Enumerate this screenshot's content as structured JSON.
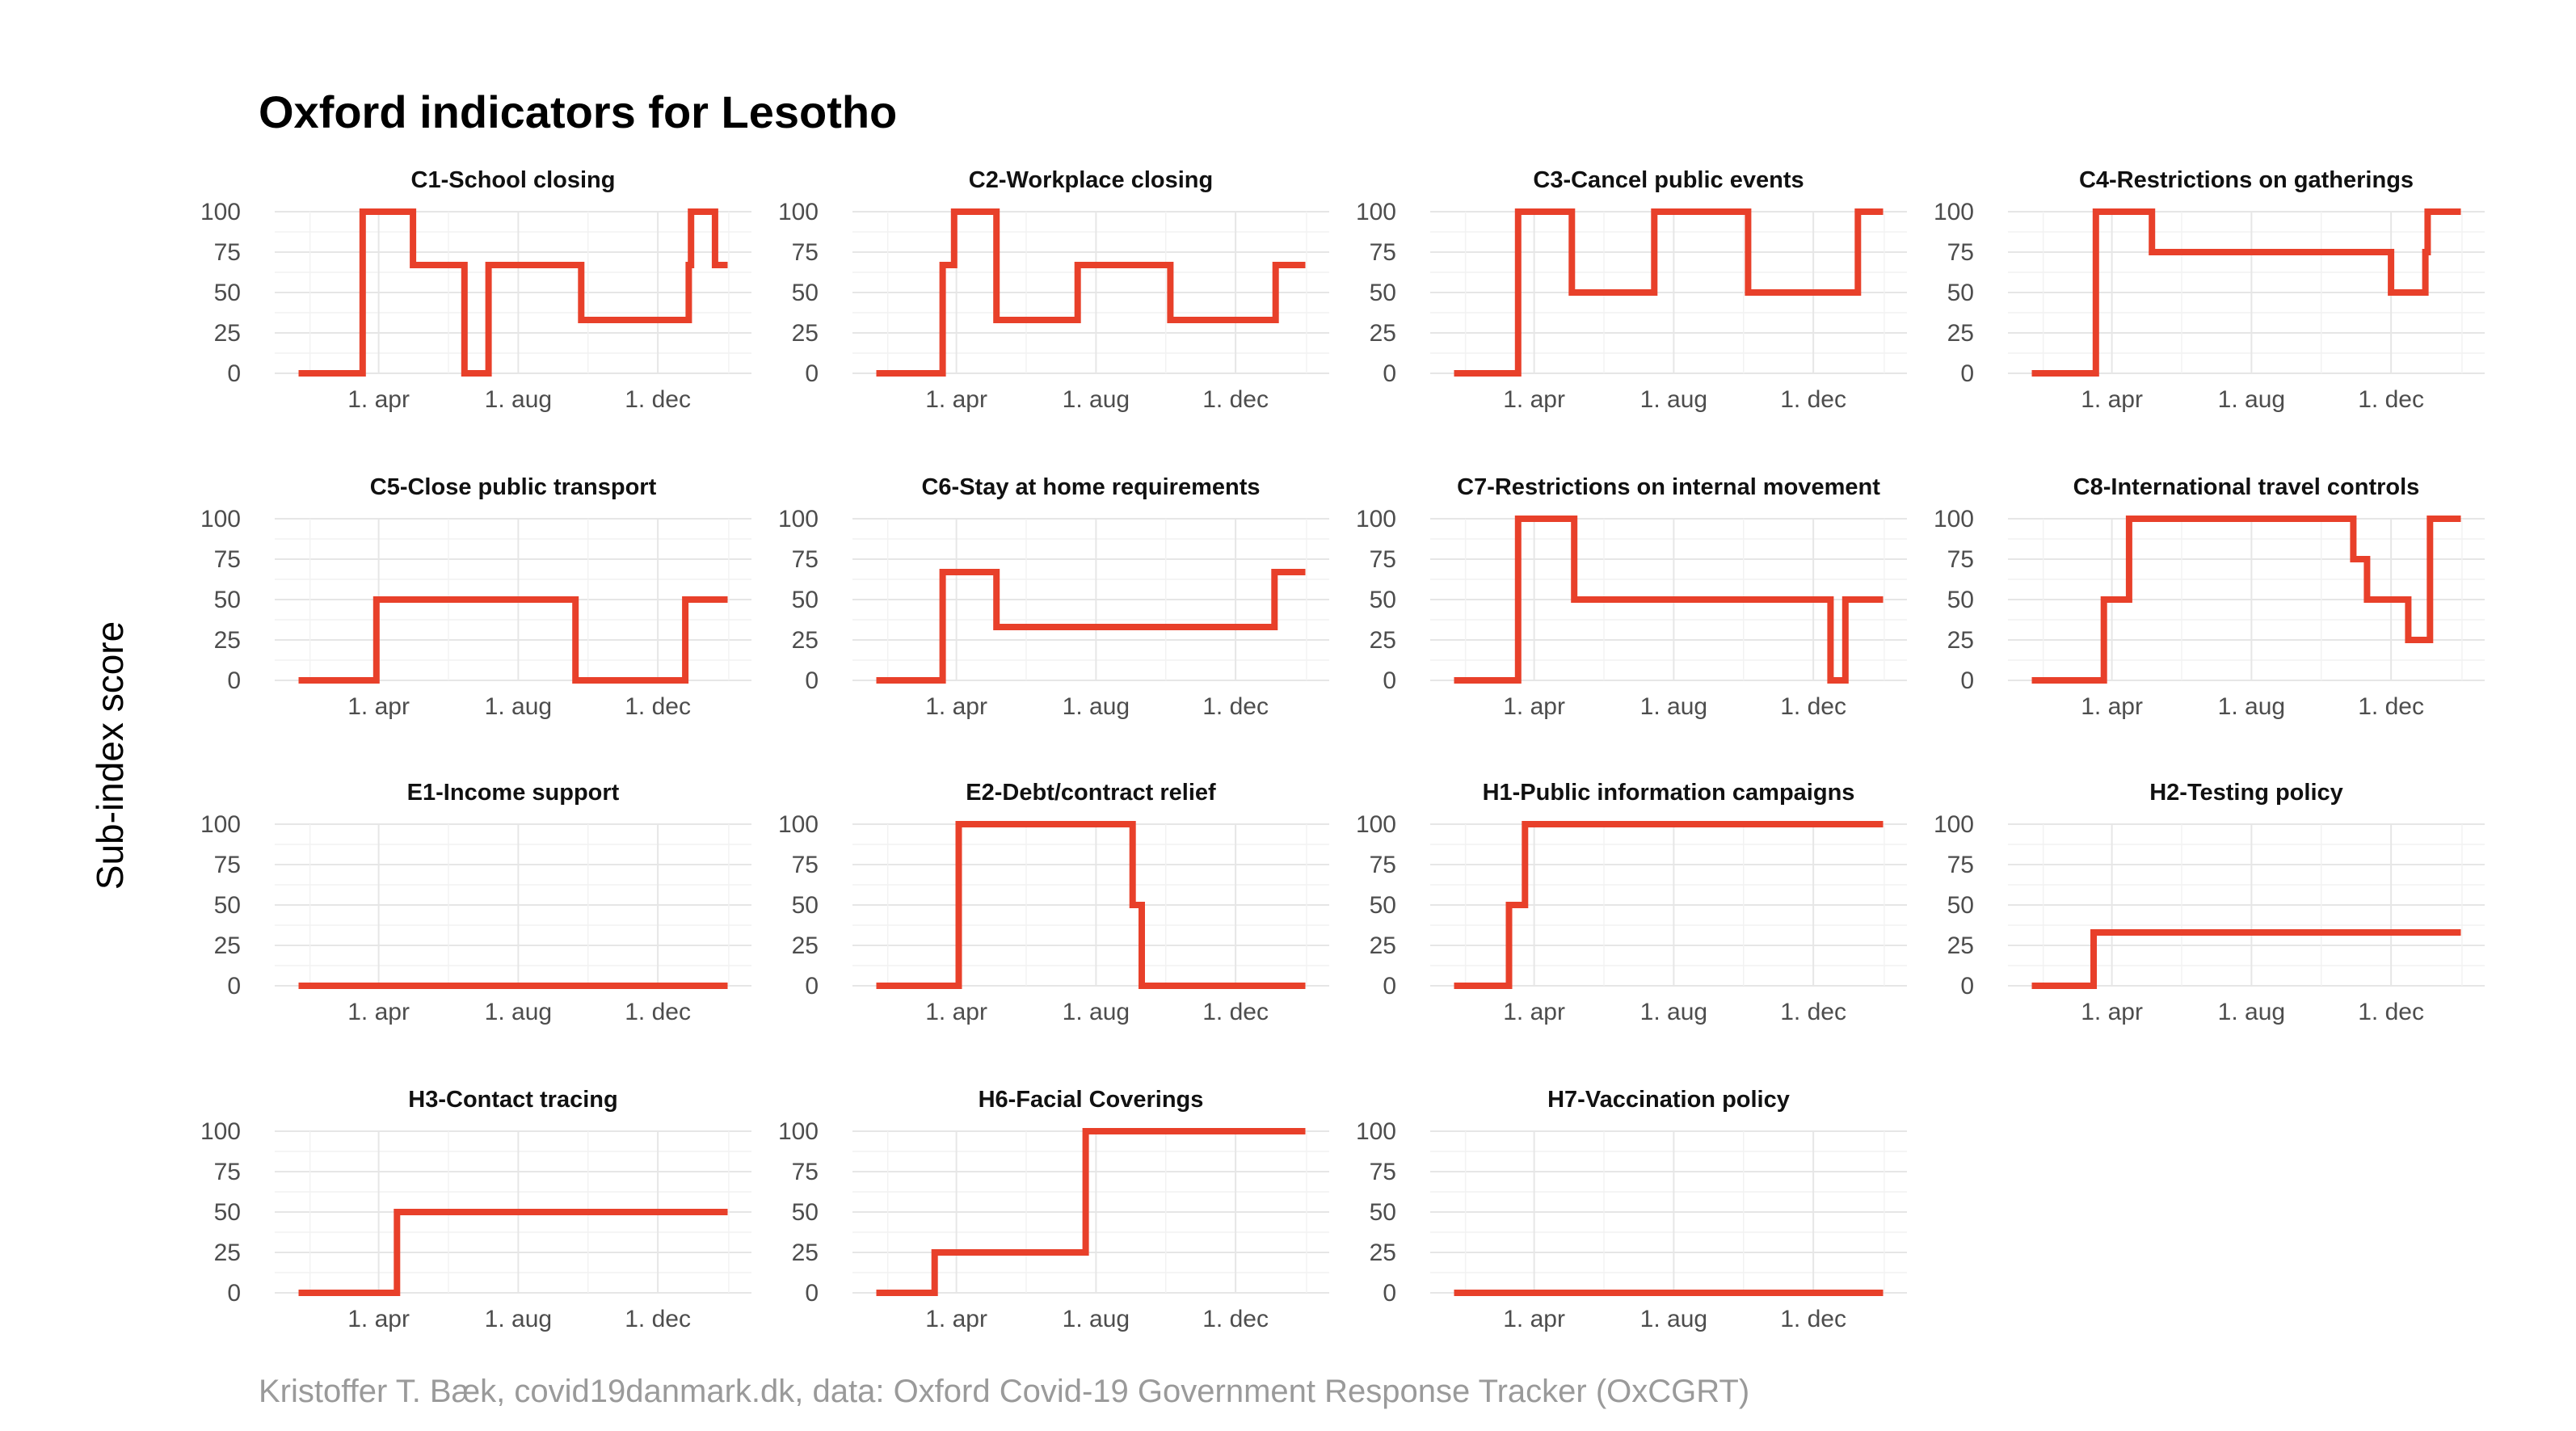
{
  "title": "Oxford indicators for Lesotho",
  "ylabel": "Sub-index score",
  "caption": "Kristoffer T. Bæk, covid19danmark.dk, data: Oxford Covid-19 Government Response Tracker (OxCGRT)",
  "colors": {
    "series": "#e8402a",
    "grid": "#e6e6e6",
    "caption": "#9a9a9a"
  },
  "chart_data": {
    "type": "line",
    "xlabel": "",
    "ylabel": "Sub-index score",
    "x_ticks": [
      "1. apr",
      "1. aug",
      "1. dec"
    ],
    "y_ticks": [
      0,
      25,
      50,
      75,
      100
    ],
    "ylim": [
      0,
      100
    ],
    "xlim": [
      "2020-01-22",
      "2021-01-31"
    ],
    "grid": true,
    "legend": "none",
    "panels": [
      {
        "name": "C1-School closing",
        "steps": [
          [
            "2020-01-22",
            0
          ],
          [
            "2020-03-18",
            100
          ],
          [
            "2020-05-01",
            67
          ],
          [
            "2020-06-15",
            0
          ],
          [
            "2020-07-06",
            67
          ],
          [
            "2020-09-25",
            33
          ],
          [
            "2020-12-28",
            67
          ],
          [
            "2020-12-30",
            100
          ],
          [
            "2021-01-20",
            67
          ],
          [
            "2021-01-31",
            67
          ]
        ]
      },
      {
        "name": "C2-Workplace closing",
        "steps": [
          [
            "2020-01-22",
            0
          ],
          [
            "2020-03-20",
            67
          ],
          [
            "2020-03-30",
            100
          ],
          [
            "2020-05-06",
            33
          ],
          [
            "2020-07-16",
            67
          ],
          [
            "2020-10-05",
            33
          ],
          [
            "2021-01-05",
            67
          ],
          [
            "2021-01-31",
            67
          ]
        ]
      },
      {
        "name": "C3-Cancel public events",
        "steps": [
          [
            "2020-01-22",
            0
          ],
          [
            "2020-03-18",
            100
          ],
          [
            "2020-05-04",
            50
          ],
          [
            "2020-07-15",
            100
          ],
          [
            "2020-10-05",
            50
          ],
          [
            "2021-01-09",
            100
          ],
          [
            "2021-01-31",
            100
          ]
        ]
      },
      {
        "name": "C4-Restrictions on gatherings",
        "steps": [
          [
            "2020-01-22",
            0
          ],
          [
            "2020-03-18",
            100
          ],
          [
            "2020-05-06",
            75
          ],
          [
            "2020-12-01",
            50
          ],
          [
            "2020-12-31",
            75
          ],
          [
            "2021-01-02",
            100
          ],
          [
            "2021-01-31",
            100
          ]
        ]
      },
      {
        "name": "C5-Close public transport",
        "steps": [
          [
            "2020-01-22",
            0
          ],
          [
            "2020-03-30",
            50
          ],
          [
            "2020-09-20",
            0
          ],
          [
            "2020-12-25",
            50
          ],
          [
            "2021-01-31",
            50
          ]
        ]
      },
      {
        "name": "C6-Stay at home requirements",
        "steps": [
          [
            "2020-01-22",
            0
          ],
          [
            "2020-03-20",
            67
          ],
          [
            "2020-05-06",
            33
          ],
          [
            "2021-01-04",
            67
          ],
          [
            "2021-01-31",
            67
          ]
        ]
      },
      {
        "name": "C7-Restrictions on internal movement",
        "steps": [
          [
            "2020-01-22",
            0
          ],
          [
            "2020-03-18",
            100
          ],
          [
            "2020-05-06",
            50
          ],
          [
            "2020-12-16",
            0
          ],
          [
            "2020-12-29",
            50
          ],
          [
            "2021-01-31",
            50
          ]
        ]
      },
      {
        "name": "C8-International travel controls",
        "steps": [
          [
            "2020-01-22",
            0
          ],
          [
            "2020-03-25",
            50
          ],
          [
            "2020-04-16",
            100
          ],
          [
            "2020-10-29",
            75
          ],
          [
            "2020-11-10",
            50
          ],
          [
            "2020-12-16",
            25
          ],
          [
            "2021-01-04",
            100
          ],
          [
            "2021-01-31",
            100
          ]
        ]
      },
      {
        "name": "E1-Income support",
        "steps": [
          [
            "2020-01-22",
            0
          ],
          [
            "2021-01-31",
            0
          ]
        ]
      },
      {
        "name": "E2-Debt/contract relief",
        "steps": [
          [
            "2020-01-22",
            0
          ],
          [
            "2020-04-03",
            100
          ],
          [
            "2020-09-02",
            50
          ],
          [
            "2020-09-10",
            0
          ],
          [
            "2021-01-31",
            0
          ]
        ]
      },
      {
        "name": "H1-Public information campaigns",
        "steps": [
          [
            "2020-01-22",
            0
          ],
          [
            "2020-03-10",
            50
          ],
          [
            "2020-03-24",
            100
          ],
          [
            "2021-01-31",
            100
          ]
        ]
      },
      {
        "name": "H2-Testing policy",
        "steps": [
          [
            "2020-01-22",
            0
          ],
          [
            "2020-03-16",
            33
          ],
          [
            "2021-01-31",
            33
          ]
        ]
      },
      {
        "name": "H3-Contact tracing",
        "steps": [
          [
            "2020-01-22",
            0
          ],
          [
            "2020-04-17",
            50
          ],
          [
            "2021-01-31",
            50
          ]
        ]
      },
      {
        "name": "H6-Facial Coverings",
        "steps": [
          [
            "2020-01-22",
            0
          ],
          [
            "2020-03-13",
            25
          ],
          [
            "2020-07-23",
            100
          ],
          [
            "2021-01-31",
            100
          ]
        ]
      },
      {
        "name": "H7-Vaccination policy",
        "steps": [
          [
            "2020-01-22",
            0
          ],
          [
            "2021-01-31",
            0
          ]
        ]
      }
    ]
  }
}
